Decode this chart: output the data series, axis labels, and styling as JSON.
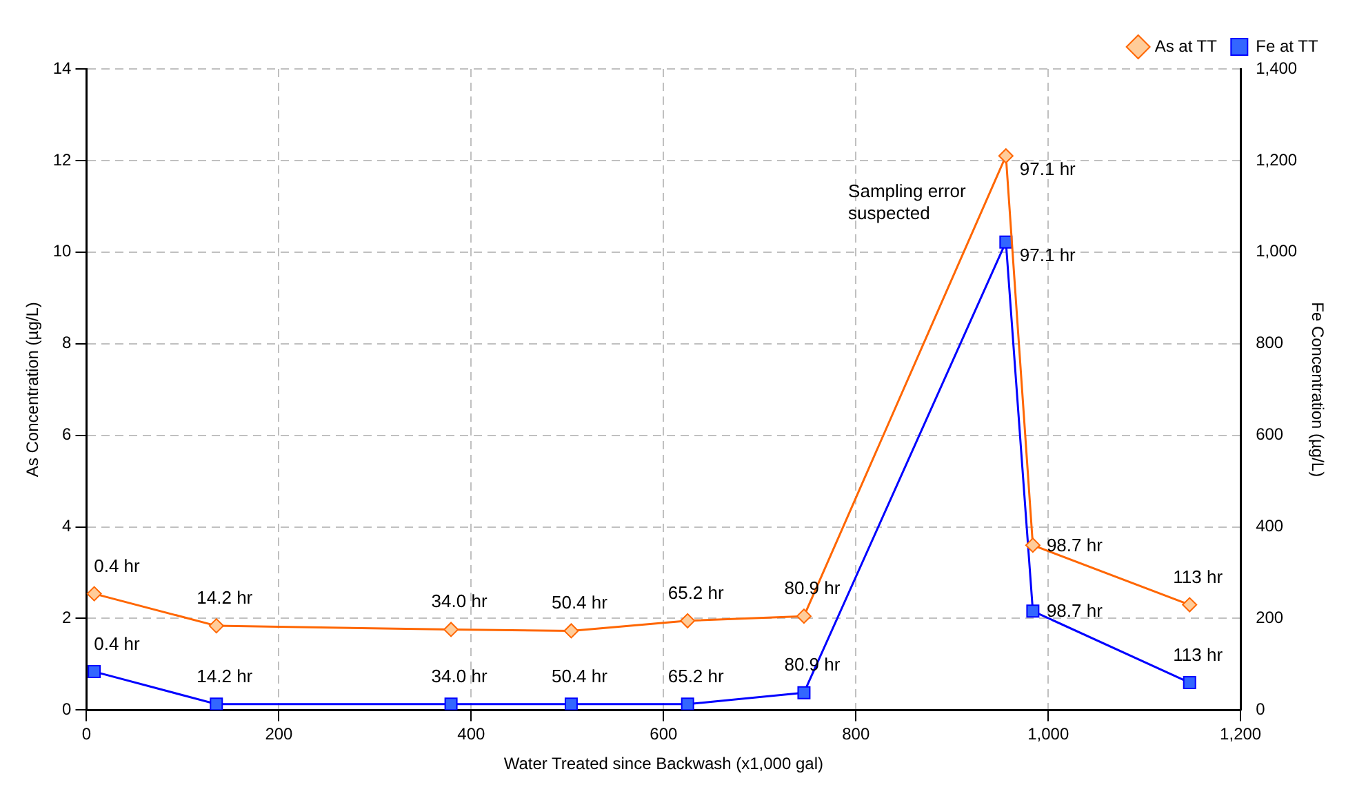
{
  "chart_data": {
    "type": "line",
    "xlabel": "Water Treated since Backwash (x1,000 gal)",
    "ylabel": "As Concentration (µg/L)",
    "y2label": "Fe Concentration (µg/L)",
    "xlim": [
      0,
      1200
    ],
    "xticks": [
      0,
      200,
      400,
      600,
      800,
      {
        "value": 1000,
        "label": "1,000"
      },
      {
        "value": 1200,
        "label": "1,200"
      }
    ],
    "ylim": [
      0,
      14
    ],
    "yticks": [
      0,
      2,
      4,
      6,
      8,
      10,
      12,
      14
    ],
    "y2lim": [
      0,
      1400
    ],
    "y2ticks": [
      0,
      200,
      400,
      600,
      800,
      {
        "value": 1000,
        "label": "1,000"
      },
      {
        "value": 1200,
        "label": "1,200"
      },
      {
        "value": 1400,
        "label": "1,400"
      }
    ],
    "grid": true,
    "legend": "top right",
    "line_style": "solid",
    "series": [
      {
        "name": "As at TT",
        "color": "#ff6600",
        "marker": "diamond",
        "x": [
          8,
          135,
          379,
          504,
          625,
          746,
          956,
          984,
          1147
        ],
        "values": [
          2.54,
          1.84,
          1.76,
          1.73,
          1.95,
          2.05,
          12.1,
          3.6,
          2.3
        ]
      },
      {
        "name": "Fe at TT",
        "color": "#0000ff",
        "marker": "square",
        "axis": "y2",
        "x": [
          8,
          135,
          379,
          504,
          625,
          746,
          956,
          984,
          1147
        ],
        "values": [
          84,
          13,
          13,
          13,
          13,
          38,
          1022,
          216,
          60
        ]
      }
    ],
    "annotations": [
      "Sampling error suspected",
      {
        "text": "0.4 hr",
        "x": 8,
        "y": 2.54
      },
      {
        "text": "14.2 hr",
        "x": 135,
        "y": 1.84
      },
      {
        "text": "34.0 hr",
        "x": 379,
        "y": 1.76
      },
      {
        "text": "50.4 hr",
        "x": 504,
        "y": 1.73
      },
      {
        "text": "65.2 hr",
        "x": 625,
        "y": 1.95
      },
      {
        "text": "80.9 hr",
        "x": 746,
        "y": 2.05
      },
      {
        "text": "97.1 hr",
        "x": 956,
        "y": 12.1
      },
      {
        "text": "98.7 hr",
        "x": 984,
        "y": 3.6
      },
      {
        "text": "113 hr",
        "x": 1147,
        "y": 2.3
      },
      {
        "text": "0.4 hr",
        "x": 8,
        "y": 0.84
      },
      {
        "text": "14.2 hr",
        "x": 135,
        "y": 0.13
      },
      {
        "text": "34.0 hr",
        "x": 379,
        "y": 0.13
      },
      {
        "text": "50.4 hr",
        "x": 504,
        "y": 0.13
      },
      {
        "text": "65.2 hr",
        "x": 625,
        "y": 0.13
      },
      {
        "text": "80.9 hr",
        "x": 746,
        "y": 0.38
      },
      {
        "text": "97.1 hr",
        "x": 956,
        "y": 10.22
      },
      {
        "text": "98.7 hr",
        "x": 984,
        "y": 2.16
      },
      {
        "text": "113 hr",
        "x": 1147,
        "y": 0.6
      }
    ]
  }
}
